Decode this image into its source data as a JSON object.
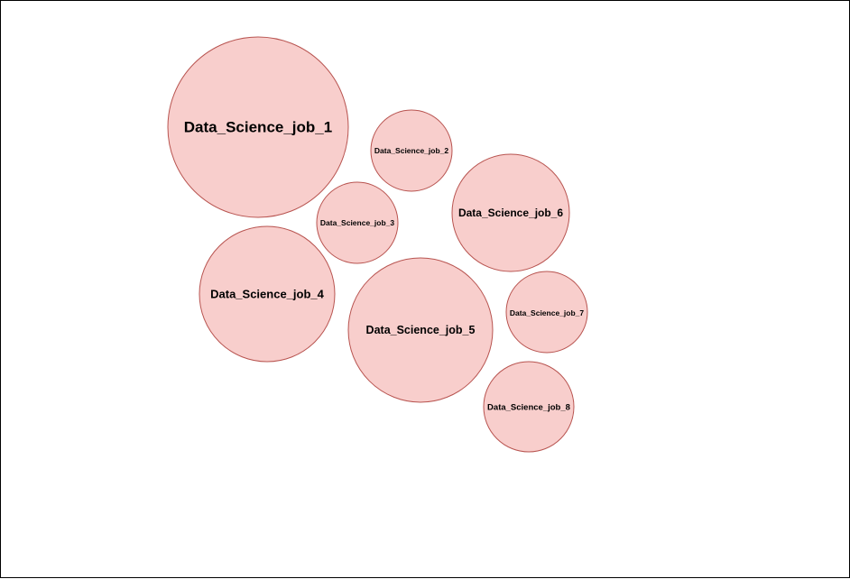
{
  "style": {
    "bubble_fill": "#f8cecc",
    "bubble_stroke": "#b85450",
    "label_color": "#000000",
    "frame_border": "#000000",
    "background": "#ffffff"
  },
  "bubbles": [
    {
      "id": "job-1",
      "label": "Data_Science_job_1"
    },
    {
      "id": "job-2",
      "label": "Data_Science_job_2"
    },
    {
      "id": "job-3",
      "label": "Data_Science_job_3"
    },
    {
      "id": "job-4",
      "label": "Data_Science_job_4"
    },
    {
      "id": "job-5",
      "label": "Data_Science_job_5"
    },
    {
      "id": "job-6",
      "label": "Data_Science_job_6"
    },
    {
      "id": "job-7",
      "label": "Data_Science_job_7"
    },
    {
      "id": "job-8",
      "label": "Data_Science_job_8"
    }
  ]
}
